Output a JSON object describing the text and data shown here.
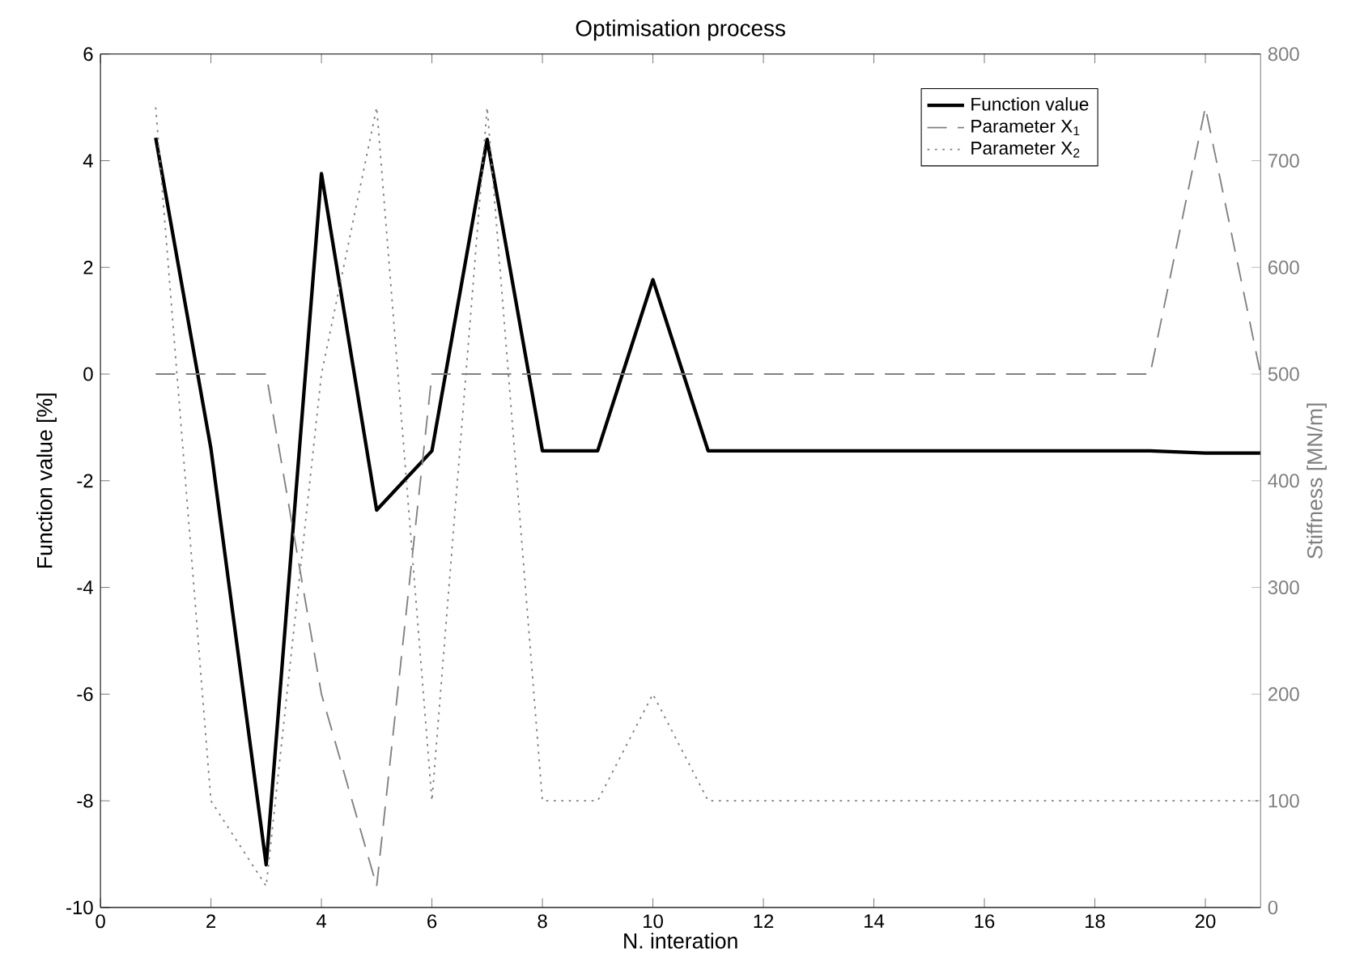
{
  "chart_data": {
    "type": "line",
    "title": "Optimisation process",
    "xlabel": "N. interation",
    "ylabel": "Function value [%]",
    "y2label": "Stiffness [MN/m]",
    "x": [
      1,
      2,
      3,
      4,
      5,
      6,
      7,
      8,
      9,
      10,
      11,
      12,
      13,
      14,
      15,
      16,
      17,
      18,
      19,
      20,
      21
    ],
    "series": [
      {
        "name": "Function value",
        "color": "#000000",
        "line_style": "solid",
        "values": [
          4.43,
          -1.4,
          -9.2,
          3.76,
          -2.55,
          -1.44,
          4.4,
          -1.44,
          -1.44,
          1.77,
          -1.44,
          -1.44,
          -1.44,
          -1.44,
          -1.44,
          -1.44,
          -1.44,
          -1.44,
          -1.44,
          -1.48,
          -1.48
        ]
      },
      {
        "name": "Parameter X$_{1}$",
        "color": "#808080",
        "line_style": "dashed",
        "axis": "y2",
        "values": [
          500,
          500,
          500,
          200,
          20,
          500,
          500,
          500,
          500,
          500,
          500,
          500,
          500,
          500,
          500,
          500,
          500,
          500,
          500,
          750,
          500
        ]
      },
      {
        "name": "Parameter X$_{2}$",
        "color": "#808080",
        "line_style": "dotted",
        "axis": "y2",
        "values": [
          750,
          100,
          20,
          500,
          750,
          100,
          750,
          100,
          100,
          200,
          100,
          100,
          100,
          100,
          100,
          100,
          100,
          100,
          100,
          100,
          100
        ]
      }
    ],
    "xlim": [
      0,
      21
    ],
    "ylim": [
      -10,
      6
    ],
    "y2lim": [
      0,
      800
    ],
    "xticks": [
      0,
      2,
      4,
      6,
      8,
      10,
      12,
      14,
      16,
      18,
      20
    ],
    "yticks": [
      -10,
      -8,
      -6,
      -4,
      -2,
      0,
      2,
      4,
      6
    ],
    "y2ticks": [
      0,
      100,
      200,
      300,
      400,
      500,
      600,
      700,
      800
    ],
    "legend": "top right"
  }
}
